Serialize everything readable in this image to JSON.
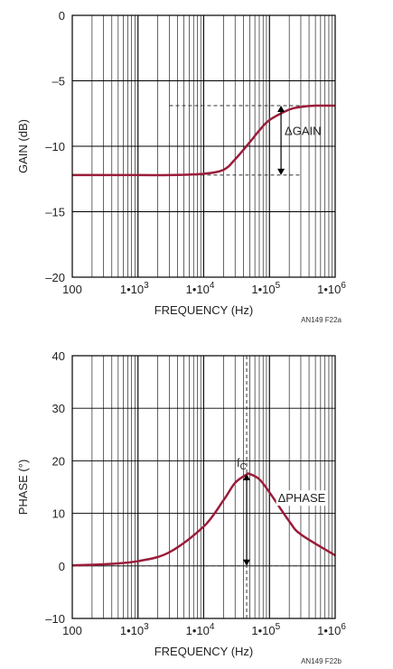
{
  "chart_data": [
    {
      "type": "line",
      "xlabel": "FREQUENCY (Hz)",
      "ylabel": "GAIN (dB)",
      "x_scale": "log",
      "xlim": [
        100,
        1000000
      ],
      "ylim": [
        -20,
        0
      ],
      "grid": true,
      "x_tick_labels": [
        "100",
        "1•10",
        "1•10",
        "1•10",
        "1•10"
      ],
      "x_tick_exponents": [
        "",
        "3",
        "4",
        "5",
        "6"
      ],
      "y_ticks": [
        0,
        -5,
        -10,
        -15,
        -20
      ],
      "y_tick_labels": [
        "0",
        "–5",
        "–10",
        "–15",
        "–20"
      ],
      "figure_label": "AN149 F22a",
      "series": [
        {
          "color": "#9b1c3a",
          "x": [
            100,
            1000,
            3000,
            10000,
            20000,
            30000,
            50000,
            70000,
            100000,
            200000,
            300000,
            500000,
            1000000
          ],
          "y": [
            -12.2,
            -12.2,
            -12.2,
            -12.1,
            -11.8,
            -11.0,
            -9.7,
            -8.8,
            -8.0,
            -7.2,
            -7.0,
            -6.9,
            -6.9
          ]
        }
      ],
      "reference_lines": [
        {
          "y": -6.9,
          "x_from": 3000,
          "x_to": 1000000
        },
        {
          "y": -12.2,
          "x_from": 3000,
          "x_to": 300000
        }
      ],
      "annotations": [
        {
          "text": "ΔGAIN",
          "x": 150000,
          "y_from": -6.9,
          "y_to": -12.2
        }
      ]
    },
    {
      "type": "line",
      "xlabel": "FREQUENCY (Hz)",
      "ylabel": "PHASE (°)",
      "x_scale": "log",
      "xlim": [
        100,
        1000000
      ],
      "ylim": [
        -10,
        40
      ],
      "grid": true,
      "x_tick_labels": [
        "100",
        "1•10",
        "1•10",
        "1•10",
        "1•10"
      ],
      "x_tick_exponents": [
        "",
        "3",
        "4",
        "5",
        "6"
      ],
      "y_ticks": [
        40,
        30,
        20,
        10,
        0,
        -10
      ],
      "y_tick_labels": [
        "40",
        "30",
        "20",
        "10",
        "0",
        "–10"
      ],
      "figure_label": "AN149 F22b",
      "series": [
        {
          "color": "#9b1c3a",
          "x": [
            100,
            300,
            1000,
            3000,
            10000,
            20000,
            30000,
            45000,
            50000,
            70000,
            100000,
            200000,
            300000,
            1000000
          ],
          "y": [
            0.1,
            0.3,
            0.9,
            2.6,
            7.5,
            12.5,
            15.8,
            17.4,
            17.5,
            16.5,
            14.0,
            8.5,
            6.0,
            2.0
          ]
        }
      ],
      "reference_lines": [
        {
          "y": 0,
          "x_from": 100,
          "x_to": 1000000
        }
      ],
      "annotations": [
        {
          "text": "f",
          "subscript": "C",
          "x": 45000,
          "y_from": 17.5,
          "y_to": 0
        },
        {
          "text": "ΔPHASE",
          "x": 300000,
          "y": 13
        }
      ]
    }
  ]
}
